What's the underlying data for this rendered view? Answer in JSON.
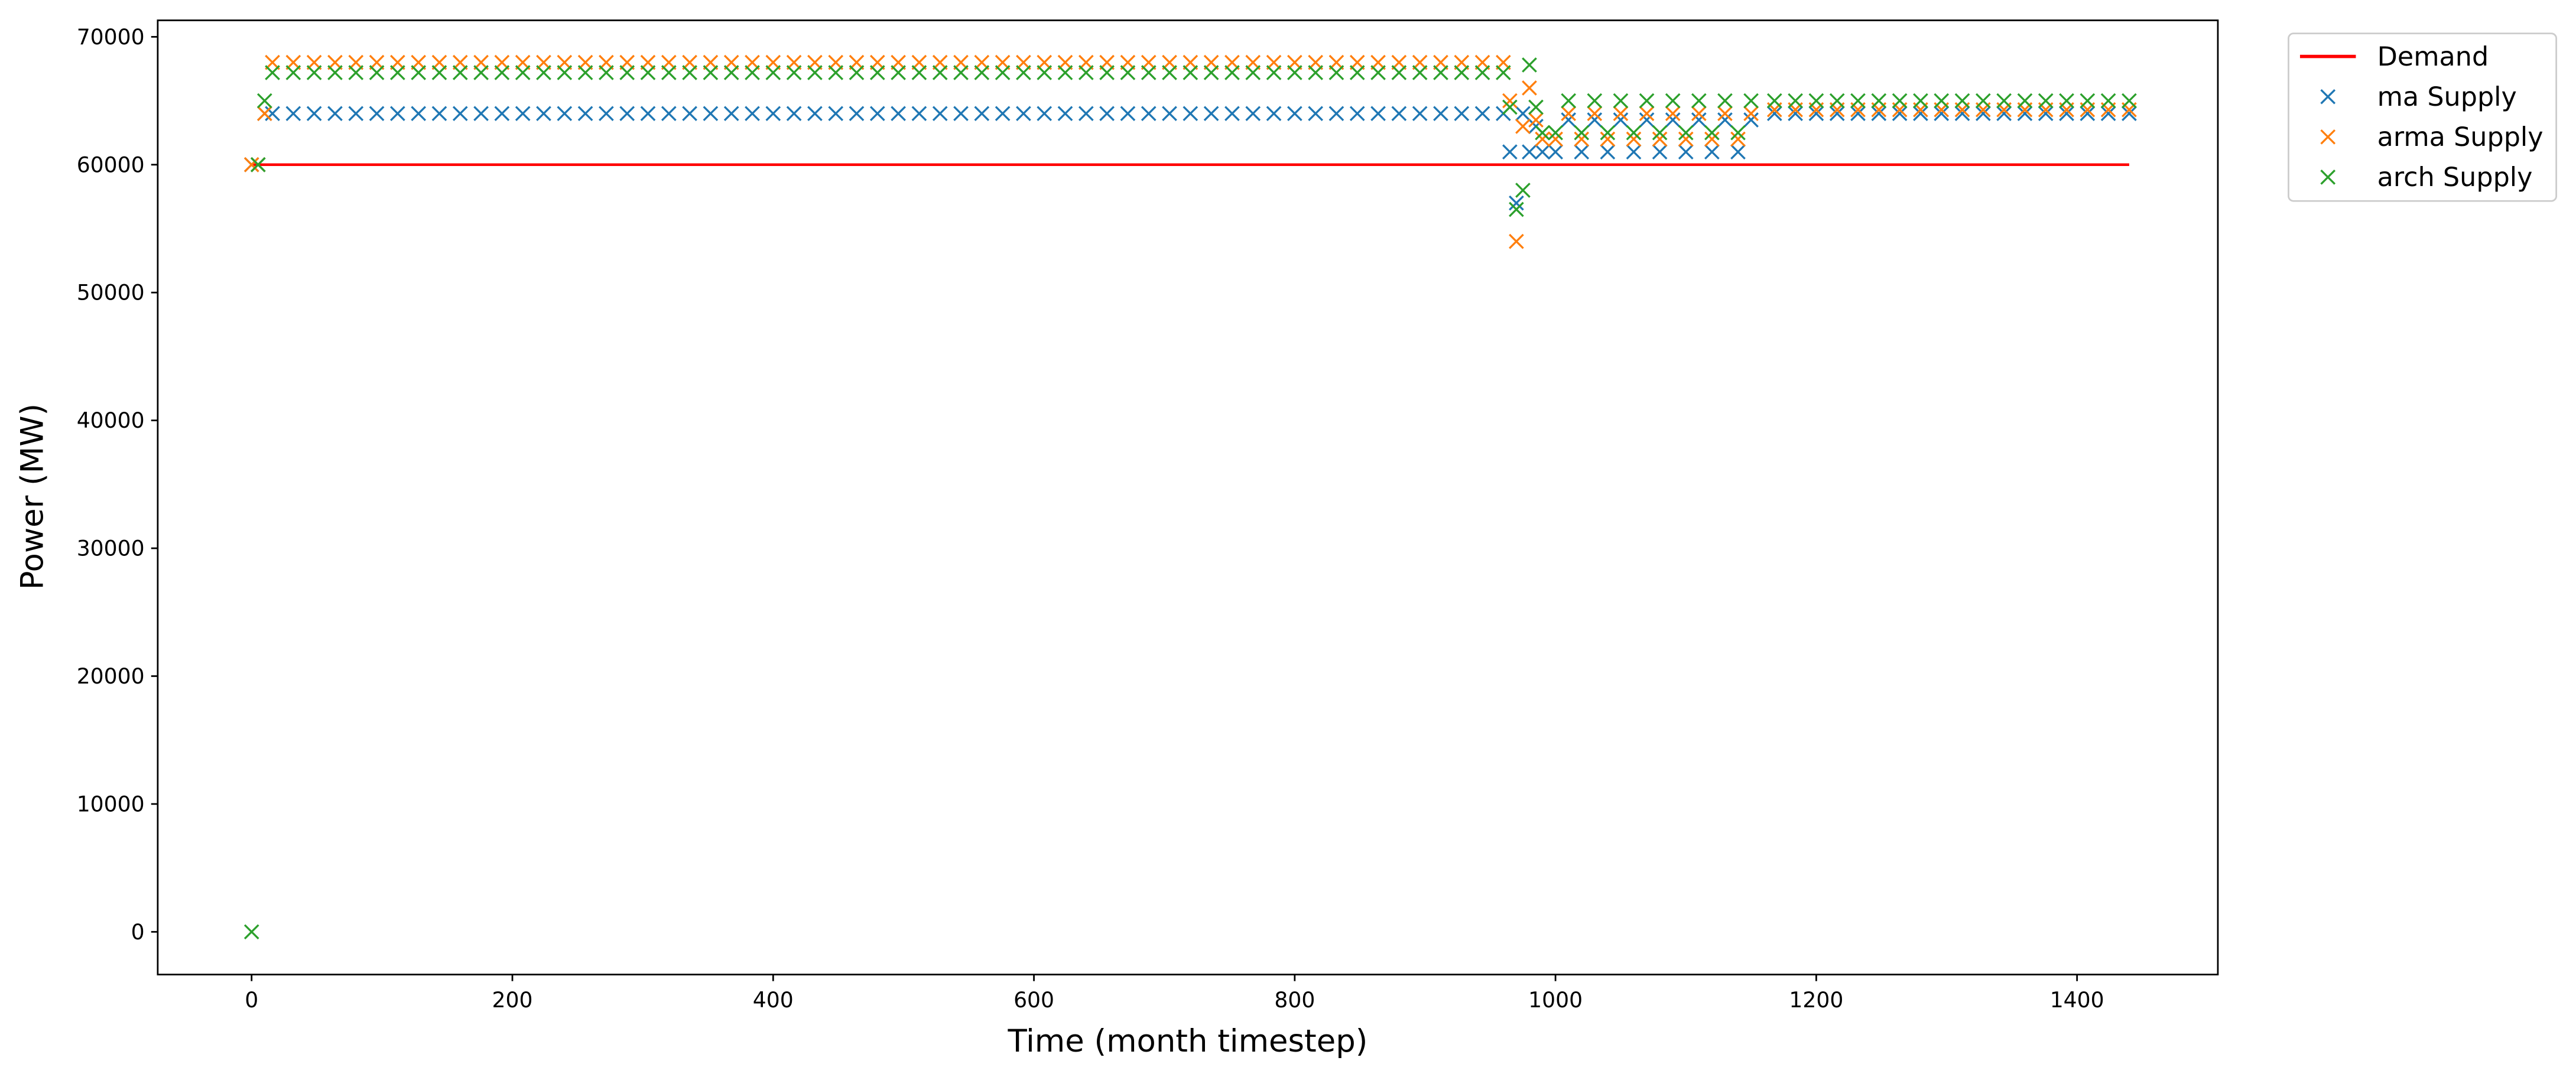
{
  "chart_data": {
    "type": "scatter",
    "x_label": "Time (month timestep)",
    "y_label": "Power (MW)",
    "xlim": [
      -72,
      1508
    ],
    "ylim": [
      -3340,
      71290
    ],
    "xticks": [
      0,
      200,
      400,
      600,
      800,
      1000,
      1200,
      1400
    ],
    "yticks": [
      0,
      10000,
      20000,
      30000,
      40000,
      50000,
      60000,
      70000
    ],
    "grid": false,
    "legend": "outside right",
    "x": [
      0,
      5,
      10,
      16,
      32,
      48,
      64,
      80,
      96,
      112,
      128,
      144,
      160,
      176,
      192,
      208,
      224,
      240,
      256,
      272,
      288,
      304,
      320,
      336,
      352,
      368,
      384,
      400,
      416,
      432,
      448,
      464,
      480,
      496,
      512,
      528,
      544,
      560,
      576,
      592,
      608,
      624,
      640,
      656,
      672,
      688,
      704,
      720,
      736,
      752,
      768,
      784,
      800,
      816,
      832,
      848,
      864,
      880,
      896,
      912,
      928,
      944,
      960,
      965,
      970,
      975,
      980,
      985,
      990,
      1000,
      1010,
      1020,
      1030,
      1040,
      1050,
      1060,
      1070,
      1080,
      1090,
      1100,
      1110,
      1120,
      1130,
      1140,
      1150,
      1168,
      1184,
      1200,
      1216,
      1232,
      1248,
      1264,
      1280,
      1296,
      1312,
      1328,
      1344,
      1360,
      1376,
      1392,
      1408,
      1424,
      1440
    ],
    "series": [
      {
        "name": "Demand",
        "color": "#ff0000",
        "style": "line",
        "x": [
          0,
          1440
        ],
        "values": [
          60000,
          60000
        ]
      },
      {
        "name": "ma Supply",
        "color": "#1f77b4",
        "style": "marker",
        "values": [
          60000,
          60000,
          64000,
          64000,
          64000,
          64000,
          64000,
          64000,
          64000,
          64000,
          64000,
          64000,
          64000,
          64000,
          64000,
          64000,
          64000,
          64000,
          64000,
          64000,
          64000,
          64000,
          64000,
          64000,
          64000,
          64000,
          64000,
          64000,
          64000,
          64000,
          64000,
          64000,
          64000,
          64000,
          64000,
          64000,
          64000,
          64000,
          64000,
          64000,
          64000,
          64000,
          64000,
          64000,
          64000,
          64000,
          64000,
          64000,
          64000,
          64000,
          64000,
          64000,
          64000,
          64000,
          64000,
          64000,
          64000,
          64000,
          64000,
          64000,
          64000,
          64000,
          64000,
          61000,
          57000,
          64000,
          61000,
          63000,
          61000,
          61000,
          63500,
          61000,
          63500,
          61000,
          63500,
          61000,
          63500,
          61000,
          63500,
          61000,
          63500,
          61000,
          63500,
          61000,
          63500,
          64000,
          64000,
          64000,
          64000,
          64000,
          64000,
          64000,
          64000,
          64000,
          64000,
          64000,
          64000,
          64000,
          64000,
          64000,
          64000,
          64000,
          64000
        ]
      },
      {
        "name": "arma Supply",
        "color": "#ff7f0e",
        "style": "marker",
        "values": [
          60000,
          60000,
          64000,
          68000,
          68000,
          68000,
          68000,
          68000,
          68000,
          68000,
          68000,
          68000,
          68000,
          68000,
          68000,
          68000,
          68000,
          68000,
          68000,
          68000,
          68000,
          68000,
          68000,
          68000,
          68000,
          68000,
          68000,
          68000,
          68000,
          68000,
          68000,
          68000,
          68000,
          68000,
          68000,
          68000,
          68000,
          68000,
          68000,
          68000,
          68000,
          68000,
          68000,
          68000,
          68000,
          68000,
          68000,
          68000,
          68000,
          68000,
          68000,
          68000,
          68000,
          68000,
          68000,
          68000,
          68000,
          68000,
          68000,
          68000,
          68000,
          68000,
          68000,
          65000,
          54000,
          63000,
          66000,
          63500,
          62000,
          62000,
          64000,
          62000,
          64000,
          62000,
          64000,
          62000,
          64000,
          62000,
          64000,
          62000,
          64000,
          62000,
          64000,
          62000,
          64000,
          64300,
          64300,
          64300,
          64300,
          64300,
          64300,
          64300,
          64300,
          64300,
          64300,
          64300,
          64300,
          64300,
          64300,
          64300,
          64300,
          64300,
          64300
        ]
      },
      {
        "name": "arch Supply",
        "color": "#2ca02c",
        "style": "marker",
        "values": [
          0,
          60000,
          65000,
          67200,
          67200,
          67200,
          67200,
          67200,
          67200,
          67200,
          67200,
          67200,
          67200,
          67200,
          67200,
          67200,
          67200,
          67200,
          67200,
          67200,
          67200,
          67200,
          67200,
          67200,
          67200,
          67200,
          67200,
          67200,
          67200,
          67200,
          67200,
          67200,
          67200,
          67200,
          67200,
          67200,
          67200,
          67200,
          67200,
          67200,
          67200,
          67200,
          67200,
          67200,
          67200,
          67200,
          67200,
          67200,
          67200,
          67200,
          67200,
          67200,
          67200,
          67200,
          67200,
          67200,
          67200,
          67200,
          67200,
          67200,
          67200,
          67200,
          67200,
          64500,
          56500,
          58000,
          67800,
          64500,
          62500,
          62500,
          65000,
          62500,
          65000,
          62500,
          65000,
          62500,
          65000,
          62500,
          65000,
          62500,
          65000,
          62500,
          65000,
          62500,
          65000,
          65000,
          65000,
          65000,
          65000,
          65000,
          65000,
          65000,
          65000,
          65000,
          65000,
          65000,
          65000,
          65000,
          65000,
          65000,
          65000,
          65000,
          65000
        ]
      }
    ]
  }
}
